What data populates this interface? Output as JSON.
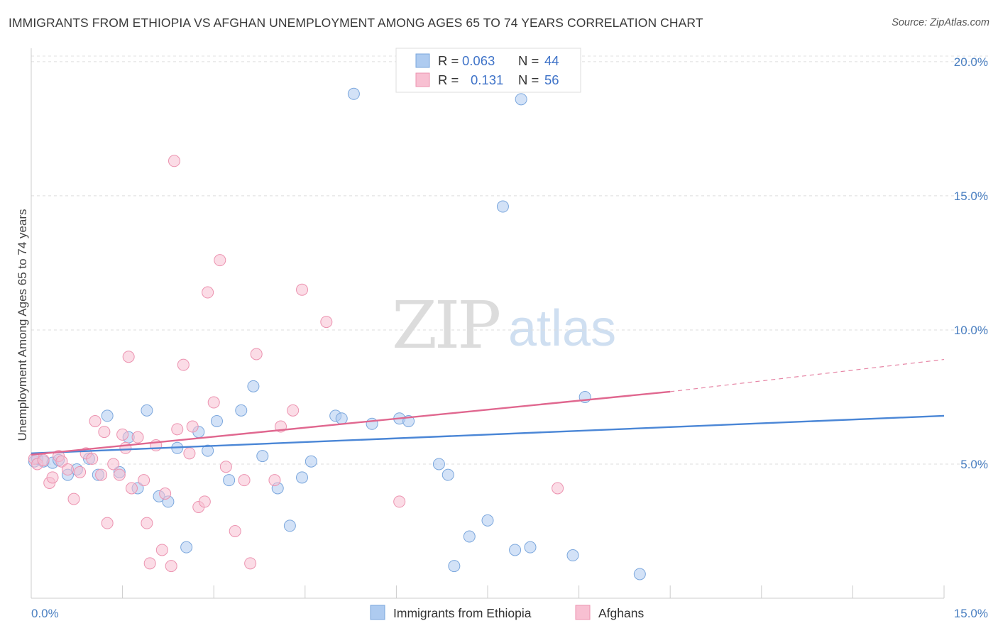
{
  "header": {
    "title": "IMMIGRANTS FROM ETHIOPIA VS AFGHAN UNEMPLOYMENT AMONG AGES 65 TO 74 YEARS CORRELATION CHART",
    "source": "Source: ZipAtlas.com"
  },
  "watermark": {
    "part1": "ZIP",
    "part2": "atlas"
  },
  "legend_top": [
    {
      "r_label": "R =",
      "r_value": "0.063",
      "n_label": "N =",
      "n_value": "44",
      "color": "#aecbf0",
      "stroke": "#7ba7dd"
    },
    {
      "r_label": "R =",
      "r_value": "0.131",
      "n_label": "N =",
      "n_value": "56",
      "color": "#f8c0d2",
      "stroke": "#ec93b0"
    }
  ],
  "legend_bottom": [
    {
      "label": "Immigrants from Ethiopia",
      "color": "#aecbf0",
      "stroke": "#7ba7dd"
    },
    {
      "label": "Afghans",
      "color": "#f8c0d2",
      "stroke": "#ec93b0"
    }
  ],
  "chart_data": {
    "type": "scatter",
    "title": "IMMIGRANTS FROM ETHIOPIA VS AFGHAN UNEMPLOYMENT AMONG AGES 65 TO 74 YEARS CORRELATION CHART",
    "xlabel": "",
    "ylabel": "Unemployment Among Ages 65 to 74 years",
    "xlim": [
      0,
      15
    ],
    "ylim": [
      0,
      20.5
    ],
    "x_tick_labels": [
      "0.0%",
      "15.0%"
    ],
    "y_ticks": [
      5,
      10,
      15,
      20
    ],
    "y_tick_labels": [
      "5.0%",
      "10.0%",
      "15.0%",
      "20.0%"
    ],
    "grid": true,
    "legend_position": "top-center",
    "series": [
      {
        "name": "Immigrants from Ethiopia",
        "color": "#4a86d6",
        "fill": "#aecbf0",
        "points": [
          [
            0.05,
            5.1
          ],
          [
            0.1,
            5.2
          ],
          [
            0.2,
            5.1
          ],
          [
            0.35,
            5.05
          ],
          [
            0.45,
            5.15
          ],
          [
            0.6,
            4.6
          ],
          [
            0.75,
            4.8
          ],
          [
            0.95,
            5.2
          ],
          [
            1.1,
            4.6
          ],
          [
            1.25,
            6.8
          ],
          [
            1.45,
            4.7
          ],
          [
            1.6,
            6.0
          ],
          [
            1.75,
            4.1
          ],
          [
            1.9,
            7.0
          ],
          [
            2.1,
            3.8
          ],
          [
            2.25,
            3.6
          ],
          [
            2.4,
            5.6
          ],
          [
            2.55,
            1.9
          ],
          [
            2.75,
            6.2
          ],
          [
            2.9,
            5.5
          ],
          [
            3.05,
            6.6
          ],
          [
            3.25,
            4.4
          ],
          [
            3.45,
            7.0
          ],
          [
            3.65,
            7.9
          ],
          [
            3.8,
            5.3
          ],
          [
            4.05,
            4.1
          ],
          [
            4.25,
            2.7
          ],
          [
            4.45,
            4.5
          ],
          [
            4.6,
            5.1
          ],
          [
            5.0,
            6.8
          ],
          [
            5.1,
            6.7
          ],
          [
            5.3,
            18.8
          ],
          [
            5.6,
            6.5
          ],
          [
            6.05,
            6.7
          ],
          [
            6.2,
            6.6
          ],
          [
            6.7,
            5.0
          ],
          [
            6.85,
            4.6
          ],
          [
            6.95,
            1.2
          ],
          [
            7.2,
            2.3
          ],
          [
            7.5,
            2.9
          ],
          [
            7.75,
            14.6
          ],
          [
            7.95,
            1.8
          ],
          [
            8.05,
            18.6
          ],
          [
            8.2,
            1.9
          ],
          [
            8.9,
            1.6
          ],
          [
            9.1,
            7.5
          ],
          [
            10.0,
            0.9
          ]
        ],
        "trend": {
          "x": [
            0,
            15
          ],
          "y": [
            5.4,
            6.8
          ]
        }
      },
      {
        "name": "Afghans",
        "color": "#e0678f",
        "fill": "#f8c0d2",
        "points": [
          [
            0.05,
            5.2
          ],
          [
            0.1,
            5.0
          ],
          [
            0.2,
            5.15
          ],
          [
            0.3,
            4.3
          ],
          [
            0.35,
            4.5
          ],
          [
            0.45,
            5.3
          ],
          [
            0.5,
            5.1
          ],
          [
            0.6,
            4.8
          ],
          [
            0.7,
            3.7
          ],
          [
            0.8,
            4.7
          ],
          [
            0.9,
            5.4
          ],
          [
            1.0,
            5.2
          ],
          [
            1.05,
            6.6
          ],
          [
            1.15,
            4.6
          ],
          [
            1.2,
            6.2
          ],
          [
            1.25,
            2.8
          ],
          [
            1.35,
            5.0
          ],
          [
            1.45,
            4.6
          ],
          [
            1.5,
            6.1
          ],
          [
            1.55,
            5.6
          ],
          [
            1.6,
            9.0
          ],
          [
            1.65,
            4.1
          ],
          [
            1.75,
            6.0
          ],
          [
            1.85,
            4.4
          ],
          [
            1.9,
            2.8
          ],
          [
            1.95,
            1.3
          ],
          [
            2.05,
            5.7
          ],
          [
            2.15,
            1.8
          ],
          [
            2.2,
            3.9
          ],
          [
            2.3,
            1.2
          ],
          [
            2.35,
            16.3
          ],
          [
            2.4,
            6.3
          ],
          [
            2.5,
            8.7
          ],
          [
            2.6,
            5.4
          ],
          [
            2.65,
            6.4
          ],
          [
            2.75,
            3.4
          ],
          [
            2.85,
            3.6
          ],
          [
            2.9,
            11.4
          ],
          [
            3.0,
            7.3
          ],
          [
            3.1,
            12.6
          ],
          [
            3.2,
            4.9
          ],
          [
            3.35,
            2.5
          ],
          [
            3.5,
            4.4
          ],
          [
            3.6,
            1.3
          ],
          [
            3.7,
            9.1
          ],
          [
            4.0,
            4.4
          ],
          [
            4.1,
            6.4
          ],
          [
            4.3,
            7.0
          ],
          [
            4.45,
            11.5
          ],
          [
            4.85,
            10.3
          ],
          [
            6.05,
            3.6
          ],
          [
            8.65,
            4.1
          ]
        ],
        "trend": {
          "x": [
            0,
            10.5
          ],
          "y": [
            5.35,
            7.7
          ]
        },
        "trend_dashed": {
          "x": [
            10.5,
            15
          ],
          "y": [
            7.7,
            8.9
          ]
        }
      }
    ]
  }
}
